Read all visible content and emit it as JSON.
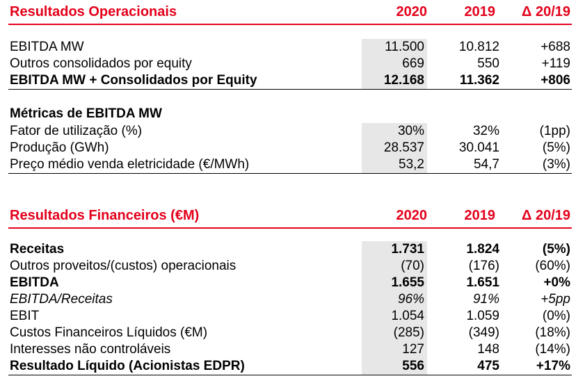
{
  "operational": {
    "header": {
      "title": "Resultados Operacionais",
      "col1": "2020",
      "col2": "2019",
      "col3": "Δ 20/19"
    },
    "rows": [
      {
        "label": "EBITDA MW",
        "v2020": "11.500",
        "v2019": "10.812",
        "delta": "+688"
      },
      {
        "label": "Outros consolidados por equity",
        "v2020": "669",
        "v2019": "550",
        "delta": "+119"
      },
      {
        "label": "EBITDA MW + Consolidados por Equity",
        "v2020": "12.168",
        "v2019": "11.362",
        "delta": "+806"
      }
    ],
    "metrics_title": "Métricas de EBITDA MW",
    "metrics": [
      {
        "label": "Fator de utilização (%)",
        "v2020": "30%",
        "v2019": "32%",
        "delta": "(1pp)"
      },
      {
        "label": "Produção (GWh)",
        "v2020": "28.537",
        "v2019": "30.041",
        "delta": "(5%)"
      },
      {
        "label": "Preço médio venda eletricidade (€/MWh)",
        "v2020": "53,2",
        "v2019": "54,7",
        "delta": "(3%)"
      }
    ]
  },
  "financial": {
    "header": {
      "title": "Resultados Financeiros (€M)",
      "col1": "2020",
      "col2": "2019",
      "col3": "Δ 20/19"
    },
    "rows": [
      {
        "label": "Receitas",
        "v2020": "1.731",
        "v2019": "1.824",
        "delta": "(5%)"
      },
      {
        "label": "Outros proveitos/(custos) operacionais",
        "v2020": "(70)",
        "v2019": "(176)",
        "delta": "(60%)"
      },
      {
        "label": "EBITDA",
        "v2020": "1.655",
        "v2019": "1.651",
        "delta": "+0%"
      },
      {
        "label": "EBITDA/Receitas",
        "v2020": "96%",
        "v2019": "91%",
        "delta": "+5pp"
      },
      {
        "label": "EBIT",
        "v2020": "1.054",
        "v2019": "1.059",
        "delta": "(0%)"
      },
      {
        "label": "Custos Financeiros Líquidos (€M)",
        "v2020": "(285)",
        "v2019": "(349)",
        "delta": "(18%)"
      },
      {
        "label": "Interesses não controláveis",
        "v2020": "127",
        "v2019": "148",
        "delta": "(14%)"
      },
      {
        "label": "Resultado Líquido (Acionistas EDPR)",
        "v2020": "556",
        "v2019": "475",
        "delta": "+17%"
      }
    ]
  },
  "colors": {
    "accent": "#e3001b",
    "cell_shade": "#e7e7e7"
  }
}
